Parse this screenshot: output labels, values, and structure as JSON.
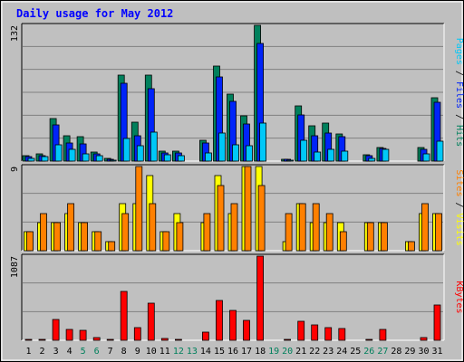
{
  "title": "Daily usage for May 2012",
  "colors": {
    "hits": "#00805c",
    "files": "#0024f9",
    "pages": "#00c8f8",
    "visits": "#ffff00",
    "sites": "#ff8000",
    "kbytes": "#ff0000",
    "title": "#0000ff",
    "weekday": "#000000",
    "weekend": "#00805c",
    "plot_bg": "#c0c0c0",
    "outer_bg": "#bfbfbf"
  },
  "chart_data": [
    {
      "type": "bar",
      "name": "hits-files-pages",
      "ymax_label": "132",
      "ylim": [
        0,
        132
      ],
      "legend": [
        {
          "label": "Pages",
          "color_key": "pages"
        },
        {
          "label": "Files",
          "color_key": "files"
        },
        {
          "label": "Hits",
          "color_key": "hits"
        }
      ],
      "series": [
        {
          "key": "hits",
          "values": [
            5,
            7,
            41,
            25,
            24,
            9,
            3,
            84,
            38,
            84,
            10,
            10,
            0,
            20,
            92,
            65,
            44,
            132,
            0,
            2,
            54,
            34,
            37,
            26,
            0,
            6,
            13,
            0,
            0,
            13,
            62
          ]
        },
        {
          "key": "files",
          "values": [
            4,
            5,
            35,
            18,
            17,
            7,
            2,
            76,
            25,
            70,
            8,
            8,
            0,
            18,
            82,
            58,
            36,
            114,
            0,
            2,
            45,
            25,
            27,
            24,
            0,
            5,
            12,
            0,
            0,
            11,
            57
          ]
        },
        {
          "key": "pages",
          "values": [
            3,
            4,
            16,
            11,
            7,
            5,
            1,
            22,
            15,
            28,
            6,
            5,
            0,
            8,
            27,
            16,
            15,
            37,
            0,
            1,
            20,
            9,
            11,
            10,
            0,
            3,
            11,
            0,
            0,
            7,
            19
          ]
        }
      ]
    },
    {
      "type": "bar",
      "name": "visits-sites",
      "ymax_label": "9",
      "ylim": [
        0,
        9
      ],
      "legend": [
        {
          "label": "Sites",
          "color_key": "sites"
        },
        {
          "label": "Visits",
          "color_key": "visits"
        }
      ],
      "series": [
        {
          "key": "visits",
          "values": [
            2,
            3,
            3,
            4,
            3,
            2,
            1,
            5,
            5,
            8,
            2,
            4,
            0,
            3,
            8,
            4,
            9,
            9,
            0,
            1,
            5,
            3,
            3,
            3,
            0,
            3,
            3,
            0,
            1,
            4,
            4
          ]
        },
        {
          "key": "sites",
          "values": [
            2,
            4,
            3,
            5,
            3,
            2,
            1,
            4,
            9,
            5,
            2,
            3,
            0,
            4,
            7,
            5,
            9,
            7,
            0,
            4,
            5,
            5,
            4,
            2,
            0,
            3,
            3,
            0,
            1,
            5,
            4
          ]
        }
      ]
    },
    {
      "type": "bar",
      "name": "kbytes",
      "ymax_label": "1087",
      "ylim": [
        0,
        1087
      ],
      "legend": [
        {
          "label": "KBytes",
          "color_key": "kbytes"
        }
      ],
      "series": [
        {
          "key": "kbytes",
          "values": [
            10,
            10,
            270,
            140,
            130,
            35,
            10,
            630,
            160,
            480,
            25,
            10,
            0,
            100,
            520,
            390,
            260,
            1087,
            0,
            5,
            250,
            200,
            160,
            150,
            0,
            10,
            145,
            0,
            0,
            35,
            460
          ]
        }
      ]
    }
  ],
  "days": [
    {
      "label": "1",
      "weekend": false
    },
    {
      "label": "2",
      "weekend": false
    },
    {
      "label": "3",
      "weekend": false
    },
    {
      "label": "4",
      "weekend": false
    },
    {
      "label": "5",
      "weekend": true
    },
    {
      "label": "6",
      "weekend": true
    },
    {
      "label": "7",
      "weekend": false
    },
    {
      "label": "8",
      "weekend": false
    },
    {
      "label": "9",
      "weekend": false
    },
    {
      "label": "10",
      "weekend": false
    },
    {
      "label": "11",
      "weekend": false
    },
    {
      "label": "12",
      "weekend": true
    },
    {
      "label": "13",
      "weekend": true
    },
    {
      "label": "14",
      "weekend": false
    },
    {
      "label": "15",
      "weekend": false
    },
    {
      "label": "16",
      "weekend": false
    },
    {
      "label": "17",
      "weekend": false
    },
    {
      "label": "18",
      "weekend": false
    },
    {
      "label": "19",
      "weekend": true
    },
    {
      "label": "20",
      "weekend": true
    },
    {
      "label": "21",
      "weekend": false
    },
    {
      "label": "22",
      "weekend": false
    },
    {
      "label": "23",
      "weekend": false
    },
    {
      "label": "24",
      "weekend": false
    },
    {
      "label": "25",
      "weekend": false
    },
    {
      "label": "26",
      "weekend": true
    },
    {
      "label": "27",
      "weekend": true
    },
    {
      "label": "28",
      "weekend": false
    },
    {
      "label": "29",
      "weekend": false
    },
    {
      "label": "30",
      "weekend": false
    },
    {
      "label": "31",
      "weekend": false
    }
  ]
}
